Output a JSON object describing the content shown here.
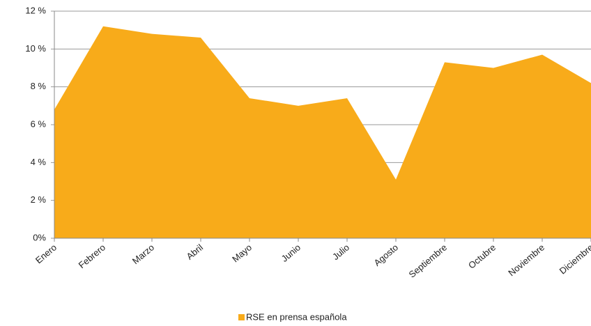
{
  "chart_data": {
    "type": "area",
    "categories": [
      "Enero",
      "Febrero",
      "Marzo",
      "Abril",
      "Mayo",
      "Junio",
      "Julio",
      "Agosto",
      "Septiembre",
      "Octubre",
      "Noviembre",
      "Diciembre"
    ],
    "series": [
      {
        "name": "RSE en prensa española",
        "color": "#f8ab1a",
        "values": [
          6.8,
          11.2,
          10.8,
          10.6,
          7.4,
          7.0,
          7.4,
          3.1,
          9.3,
          9.0,
          9.7,
          8.2
        ]
      }
    ],
    "ylim": [
      0,
      12
    ],
    "yticks": [
      {
        "value": 0,
        "label": "0%"
      },
      {
        "value": 2,
        "label": "2 %"
      },
      {
        "value": 4,
        "label": "4 %"
      },
      {
        "value": 6,
        "label": "6 %"
      },
      {
        "value": 8,
        "label": "8 %"
      },
      {
        "value": 10,
        "label": "10 %"
      },
      {
        "value": 12,
        "label": "12 %"
      }
    ],
    "grid": true,
    "legend": "bottom"
  }
}
